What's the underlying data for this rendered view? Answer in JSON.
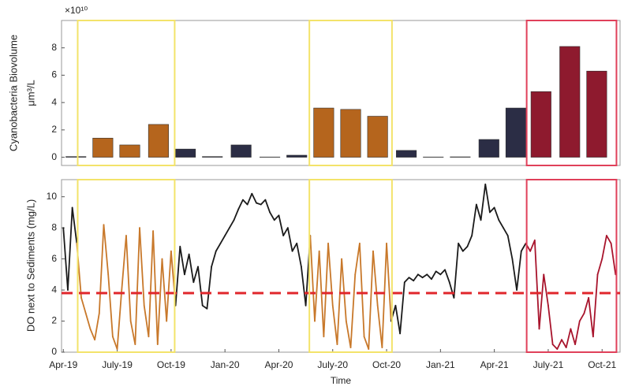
{
  "chart_data": [
    {
      "type": "bar",
      "y_label": "Cyanobacteria Biovolume",
      "y_unit": "μm³/L",
      "y_multiplier": "×10¹⁰",
      "x": [
        0.7,
        2.2,
        3.7,
        5.3,
        6.8,
        8.3,
        9.9,
        11.5,
        13.0,
        14.5,
        16.0,
        17.5,
        19.1,
        20.6,
        22.1,
        23.7,
        25.2,
        26.6,
        28.2,
        29.7
      ],
      "values": [
        0.05,
        1.4,
        0.9,
        2.4,
        0.6,
        0.05,
        0.9,
        0.02,
        0.15,
        3.6,
        3.5,
        3.0,
        0.5,
        0.02,
        0.03,
        1.3,
        3.6,
        4.8,
        8.1,
        6.3
      ],
      "color": "#2b2d45",
      "xlim": [
        -0.1,
        31.0
      ],
      "ylim": [
        -0.6,
        10
      ],
      "yticks": [
        0,
        2,
        4,
        6,
        8
      ],
      "highlights": [
        {
          "xlim": [
            0.8,
            6.2
          ],
          "color": "#f3e36a",
          "mark_color": "#b5651d"
        },
        {
          "xlim": [
            13.7,
            18.3
          ],
          "color": "#f3e36a",
          "mark_color": "#b5651d"
        },
        {
          "xlim": [
            25.8,
            30.8
          ],
          "color": "#e0405a",
          "mark_color": "#8e1a2e"
        }
      ]
    },
    {
      "type": "line",
      "y_label": "DO next to Sediments (mg/L)",
      "x_label": "Time",
      "x": [
        0,
        0.25,
        0.5,
        0.75,
        1,
        1.25,
        1.5,
        1.75,
        2,
        2.25,
        2.5,
        2.75,
        3,
        3.25,
        3.5,
        3.75,
        4,
        4.25,
        4.5,
        4.75,
        5,
        5.25,
        5.5,
        5.75,
        6,
        6.25,
        6.5,
        6.75,
        7,
        7.25,
        7.5,
        7.75,
        8,
        8.25,
        8.5,
        8.75,
        9,
        9.25,
        9.5,
        9.75,
        10,
        10.25,
        10.5,
        10.75,
        11,
        11.25,
        11.5,
        11.75,
        12,
        12.25,
        12.5,
        12.75,
        13,
        13.25,
        13.5,
        13.75,
        14,
        14.25,
        14.5,
        14.75,
        15,
        15.25,
        15.5,
        15.75,
        16,
        16.25,
        16.5,
        16.75,
        17,
        17.25,
        17.5,
        17.75,
        18,
        18.25,
        18.5,
        18.75,
        19,
        19.25,
        19.5,
        19.75,
        20,
        20.25,
        20.5,
        20.75,
        21,
        21.25,
        21.5,
        21.75,
        22,
        22.25,
        22.5,
        22.75,
        23,
        23.25,
        23.5,
        23.75,
        24,
        24.25,
        24.5,
        24.75,
        25,
        25.25,
        25.5,
        25.75,
        26,
        26.25,
        26.5,
        26.75,
        27,
        27.25,
        27.5,
        27.75,
        28,
        28.25,
        28.5,
        28.75,
        29,
        29.25,
        29.5,
        29.75,
        30,
        30.25,
        30.5,
        30.75
      ],
      "values": [
        8.0,
        4,
        9.3,
        7,
        3.5,
        2.5,
        1.5,
        0.8,
        2.5,
        8.2,
        5,
        1,
        0.2,
        4,
        7.5,
        2,
        0.5,
        8,
        3,
        1,
        7.8,
        0.5,
        6,
        2,
        6.5,
        3,
        6.8,
        5,
        6.3,
        4.5,
        5.5,
        3,
        2.8,
        5.5,
        6.5,
        7,
        7.5,
        8,
        8.5,
        9.2,
        9.8,
        9.5,
        10.2,
        9.6,
        9.5,
        9.8,
        9.0,
        8.5,
        8.8,
        7.5,
        8,
        6.5,
        7,
        5.5,
        3,
        7.5,
        2,
        6.5,
        1,
        7,
        3,
        0.5,
        6,
        2,
        0.3,
        5,
        7,
        1,
        0.2,
        6.5,
        3,
        0.3,
        7,
        2,
        3,
        1.2,
        4.5,
        4.8,
        4.6,
        5,
        4.8,
        5,
        4.7,
        5.2,
        5,
        5.3,
        4.5,
        3.5,
        7,
        6.5,
        6.8,
        7.5,
        9.5,
        8.5,
        10.8,
        9,
        9.3,
        8.5,
        8,
        7.5,
        6,
        4,
        6.5,
        7,
        6.5,
        7.2,
        1.5,
        5,
        3,
        0.5,
        0.2,
        0.8,
        0.3,
        1.5,
        0.5,
        2,
        2.5,
        3.5,
        1,
        5,
        6,
        7.5,
        7,
        5
      ],
      "color": "#1a1a1a",
      "reference_line": {
        "value": 3.8,
        "color": "#e0262b"
      },
      "xlim": [
        -0.1,
        31.0
      ],
      "ylim": [
        0,
        11.1
      ],
      "yticks": [
        0,
        2,
        4,
        6,
        8,
        10
      ],
      "xticks": [
        {
          "value": 0,
          "label": "Apr-19"
        },
        {
          "value": 3,
          "label": "July-19"
        },
        {
          "value": 6,
          "label": "Oct-19"
        },
        {
          "value": 9,
          "label": "Jan-20"
        },
        {
          "value": 12,
          "label": "Apr-20"
        },
        {
          "value": 15,
          "label": "July-20"
        },
        {
          "value": 18,
          "label": "Oct-20"
        },
        {
          "value": 21,
          "label": "Jan-21"
        },
        {
          "value": 24,
          "label": "Apr-21"
        },
        {
          "value": 27,
          "label": "July-21"
        },
        {
          "value": 30,
          "label": "Oct-21"
        }
      ],
      "highlights": [
        {
          "xlim": [
            0.8,
            6.2
          ],
          "color": "#f3e36a",
          "mark_color": "#c8782a"
        },
        {
          "xlim": [
            13.7,
            18.3
          ],
          "color": "#f3e36a",
          "mark_color": "#c8782a"
        },
        {
          "xlim": [
            25.8,
            30.8
          ],
          "color": "#e0405a",
          "mark_color": "#a8142c"
        }
      ]
    }
  ]
}
